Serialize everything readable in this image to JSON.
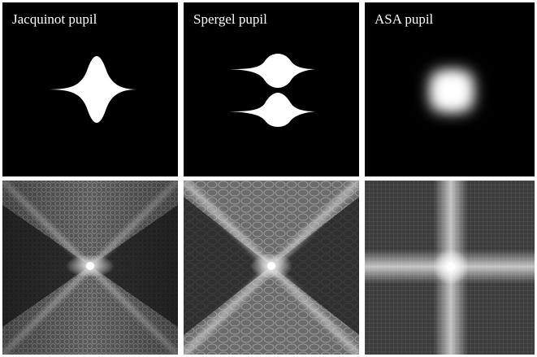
{
  "figure": {
    "panels": [
      {
        "title": "Jacquinot pupil"
      },
      {
        "title": "Spergel pupil"
      },
      {
        "title": "ASA pupil"
      }
    ],
    "colors": {
      "background": "#000000",
      "foreground": "#ffffff",
      "separator": "#ffffff"
    }
  }
}
